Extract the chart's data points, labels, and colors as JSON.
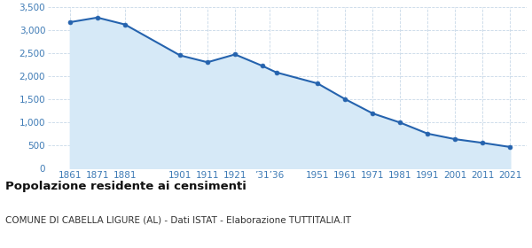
{
  "years": [
    1861,
    1871,
    1881,
    1901,
    1911,
    1921,
    1931,
    1936,
    1951,
    1961,
    1971,
    1981,
    1991,
    2001,
    2011,
    2021
  ],
  "population": [
    3180,
    3280,
    3130,
    2460,
    2310,
    2480,
    2230,
    2090,
    1850,
    1510,
    1200,
    1000,
    760,
    640,
    560,
    470
  ],
  "x_tick_labels": [
    "1861",
    "1871",
    "1881",
    "1901",
    "1911",
    "1921",
    "’31’36",
    "1951",
    "1961",
    "1971",
    "1981",
    "1991",
    "2001",
    "2011",
    "2021"
  ],
  "x_tick_positions": [
    1861,
    1871,
    1881,
    1901,
    1911,
    1921,
    1933.5,
    1951,
    1961,
    1971,
    1981,
    1991,
    2001,
    2011,
    2021
  ],
  "line_color": "#2563ae",
  "fill_color": "#d6e9f7",
  "marker_color": "#2563ae",
  "background_color": "#ffffff",
  "grid_color": "#c8d8e8",
  "ylim": [
    0,
    3500
  ],
  "yticks": [
    0,
    500,
    1000,
    1500,
    2000,
    2500,
    3000,
    3500
  ],
  "ytick_labels": [
    "0",
    "500",
    "1,000",
    "1,500",
    "2,000",
    "2,500",
    "3,000",
    "3,500"
  ],
  "title": "Popolazione residente ai censimenti",
  "subtitle": "COMUNE DI CABELLA LIGURE (AL) - Dati ISTAT - Elaborazione TUTTITALIA.IT",
  "title_fontsize": 9.5,
  "subtitle_fontsize": 7.5,
  "axis_label_color": "#3d7ab5",
  "axis_tick_fontsize": 7.5,
  "xlim": [
    1853,
    2027
  ]
}
